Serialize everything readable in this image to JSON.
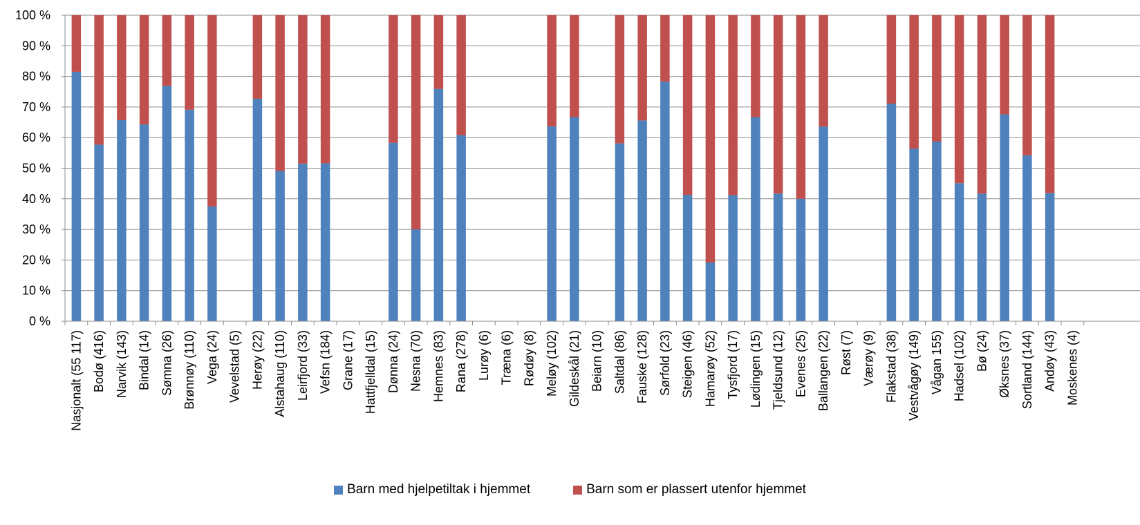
{
  "chart_data": {
    "type": "bar",
    "stacked": true,
    "percent_stacked": true,
    "categories": [
      "Nasjonalt (55 117)",
      "Bodø (416)",
      "Narvik (143)",
      "Bindal (14)",
      "Sømna (26)",
      "Brønnøy (110)",
      "Vega (24)",
      "Vevelstad (5)",
      "Herøy (22)",
      "Alstahaug (110)",
      "Leirfjord (33)",
      "Vefsn (184)",
      "Grane (17)",
      "Hattfjelldal (15)",
      "Dønna (24)",
      "Nesna (70)",
      "Hemnes (83)",
      "Rana (278)",
      "Lurøy (6)",
      "Træna (6)",
      "Rødøy (8)",
      "Meløy (102)",
      "Gildeskål (21)",
      "Beiarn (10)",
      "Saltdal (86)",
      "Fauske (128)",
      "Sørfold (23)",
      "Steigen (46)",
      "Hamarøy (52)",
      "Tysfjord (17)",
      "Lødingen (15)",
      "Tjeldsund (12)",
      "Evenes (25)",
      "Ballangen (22)",
      "Røst (7)",
      "Værøy (9)",
      "Flakstad (38)",
      "Vestvågøy (149)",
      "Vågan 155)",
      "Hadsel (102)",
      "Bø (24)",
      "Øksnes (37)",
      "Sortland (144)",
      "Andøy (43)",
      "Moskenes (4)"
    ],
    "series": [
      {
        "name": "Barn med hjelpetiltak i hjemmet",
        "color": "#4f81bd",
        "values": [
          81.5,
          57.7,
          65.7,
          64.3,
          76.9,
          69.1,
          37.5,
          null,
          72.7,
          49.1,
          51.5,
          51.6,
          null,
          null,
          58.3,
          30.0,
          75.9,
          60.8,
          null,
          null,
          null,
          63.7,
          66.7,
          null,
          58.1,
          65.6,
          78.3,
          41.3,
          19.2,
          41.2,
          66.7,
          41.7,
          40.0,
          63.6,
          null,
          null,
          71.1,
          56.4,
          58.7,
          45.1,
          41.7,
          67.6,
          54.2,
          41.9,
          null
        ]
      },
      {
        "name": "Barn som er plassert utenfor hjemmet",
        "color": "#c0504d",
        "values": [
          18.5,
          42.3,
          34.3,
          35.7,
          23.1,
          30.9,
          62.5,
          null,
          27.3,
          50.9,
          48.5,
          48.4,
          null,
          null,
          41.7,
          70.0,
          24.1,
          39.2,
          null,
          null,
          null,
          36.3,
          33.3,
          null,
          41.9,
          34.4,
          21.7,
          58.7,
          80.8,
          58.8,
          33.3,
          58.3,
          60.0,
          36.4,
          null,
          null,
          28.9,
          43.6,
          41.3,
          54.9,
          58.3,
          32.4,
          45.8,
          58.1,
          null
        ]
      }
    ],
    "yticks": [
      "0 %",
      "10 %",
      "20 %",
      "30 %",
      "40 %",
      "50 %",
      "60 %",
      "70 %",
      "80 %",
      "90 %",
      "100 %"
    ],
    "ylim": [
      0,
      100
    ],
    "grid": true,
    "legend_position": "bottom"
  }
}
